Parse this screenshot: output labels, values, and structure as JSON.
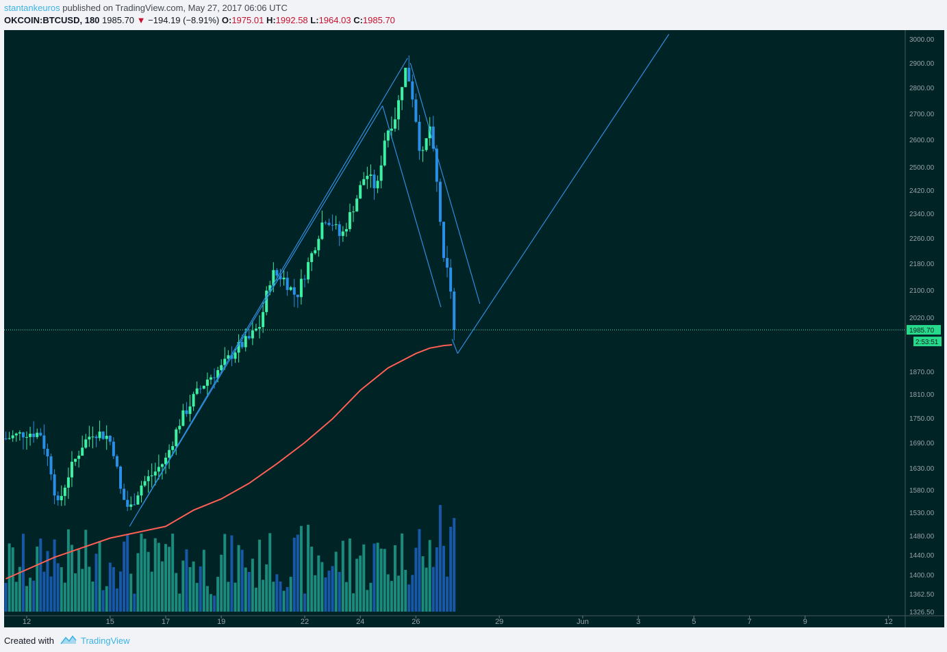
{
  "header": {
    "author": "stantankeuros",
    "published": "published on TradingView.com, May 27, 2017 06:06 UTC",
    "symbol": "OKCOIN:BTCUSD, 180",
    "last": "1985.70",
    "change": "−194.19 (−8.91%)",
    "o_label": "O:",
    "o_value": "1975.01",
    "h_label": "H:",
    "h_value": "1992.58",
    "l_label": "L:",
    "l_value": "1964.03",
    "c_label": "C:",
    "c_value": "1985.70"
  },
  "footer": {
    "created_with": "Created with",
    "brand": "TradingView"
  },
  "colors": {
    "background": "#002326",
    "up": "#3cf0a4",
    "down": "#2a8fe6",
    "moving_average": "#ff5f54",
    "drawing": "#2d8fe0",
    "price_line": "#4df0c0",
    "vol_up": "#1f9e8c",
    "vol_down": "#1c62c0"
  },
  "chart_data": {
    "type": "candlestick",
    "title": "",
    "xlabel": "",
    "ylabel": "",
    "ylim": [
      1326.5,
      3020
    ],
    "y_ticks": [
      3000,
      2900,
      2800,
      2700,
      2600,
      2500,
      2420,
      2340,
      2260,
      2180,
      2100,
      2020,
      1870,
      1810,
      1750,
      1690,
      1630,
      1580,
      1530,
      1480,
      1440,
      1400,
      1362.5,
      1326.5
    ],
    "y_tick_labels": [
      "3000.00",
      "2900.00",
      "2800.00",
      "2700.00",
      "2600.00",
      "2500.00",
      "2420.00",
      "2340.00",
      "2260.00",
      "2180.00",
      "2100.00",
      "2020.00",
      "1870.00",
      "1810.00",
      "1750.00",
      "1690.00",
      "1630.00",
      "1580.00",
      "1530.00",
      "1480.00",
      "1440.00",
      "1400.00",
      "1362.50",
      "1326.50"
    ],
    "x_ticks": [
      {
        "label": "12",
        "day": 0
      },
      {
        "label": "15",
        "day": 3
      },
      {
        "label": "17",
        "day": 5
      },
      {
        "label": "19",
        "day": 7
      },
      {
        "label": "22",
        "day": 10
      },
      {
        "label": "24",
        "day": 12
      },
      {
        "label": "26",
        "day": 14
      },
      {
        "label": "29",
        "day": 17
      },
      {
        "label": "Jun",
        "day": 20
      },
      {
        "label": "3",
        "day": 22
      },
      {
        "label": "5",
        "day": 24
      },
      {
        "label": "7",
        "day": 26
      },
      {
        "label": "9",
        "day": 28
      },
      {
        "label": "12",
        "day": 31
      }
    ],
    "x_axis_note": "day = days after May 12, 2017 (x-axis tick label 12)",
    "price_series": [
      {
        "day": -0.75,
        "close": 1700
      },
      {
        "day": 0,
        "close": 1715
      },
      {
        "day": 0.5,
        "close": 1712
      },
      {
        "day": 0.9,
        "close": 1620
      },
      {
        "day": 1.1,
        "close": 1540
      },
      {
        "day": 1.5,
        "close": 1615
      },
      {
        "day": 2,
        "close": 1685
      },
      {
        "day": 2.4,
        "close": 1718
      },
      {
        "day": 2.9,
        "close": 1705
      },
      {
        "day": 3.1,
        "close": 1680
      },
      {
        "day": 3.4,
        "close": 1570
      },
      {
        "day": 3.7,
        "close": 1535
      },
      {
        "day": 4.1,
        "close": 1590
      },
      {
        "day": 4.6,
        "close": 1620
      },
      {
        "day": 5,
        "close": 1650
      },
      {
        "day": 5.5,
        "close": 1740
      },
      {
        "day": 6,
        "close": 1800
      },
      {
        "day": 6.5,
        "close": 1850
      },
      {
        "day": 7,
        "close": 1880
      },
      {
        "day": 7.5,
        "close": 1930
      },
      {
        "day": 8,
        "close": 1960
      },
      {
        "day": 8.4,
        "close": 2000
      },
      {
        "day": 8.8,
        "close": 2150
      },
      {
        "day": 9.2,
        "close": 2140
      },
      {
        "day": 9.7,
        "close": 2080
      },
      {
        "day": 10.3,
        "close": 2220
      },
      {
        "day": 10.7,
        "close": 2330
      },
      {
        "day": 11,
        "close": 2310
      },
      {
        "day": 11.3,
        "close": 2260
      },
      {
        "day": 11.7,
        "close": 2350
      },
      {
        "day": 12.2,
        "close": 2480
      },
      {
        "day": 12.6,
        "close": 2420
      },
      {
        "day": 12.9,
        "close": 2620
      },
      {
        "day": 13.3,
        "close": 2700
      },
      {
        "day": 13.6,
        "close": 2880
      },
      {
        "day": 13.8,
        "close": 2820
      },
      {
        "day": 14.0,
        "close": 2680
      },
      {
        "day": 14.2,
        "close": 2520
      },
      {
        "day": 14.5,
        "close": 2650
      },
      {
        "day": 14.8,
        "close": 2400
      },
      {
        "day": 15.0,
        "close": 2180
      },
      {
        "day": 15.2,
        "close": 2140
      },
      {
        "day": 15.4,
        "close": 1985.7
      }
    ],
    "moving_average": [
      {
        "day": -0.75,
        "value": 1392
      },
      {
        "day": 1,
        "value": 1435
      },
      {
        "day": 3,
        "value": 1475
      },
      {
        "day": 5,
        "value": 1500
      },
      {
        "day": 6,
        "value": 1535
      },
      {
        "day": 7,
        "value": 1560
      },
      {
        "day": 8,
        "value": 1595
      },
      {
        "day": 9,
        "value": 1640
      },
      {
        "day": 10,
        "value": 1690
      },
      {
        "day": 11,
        "value": 1748
      },
      {
        "day": 12,
        "value": 1820
      },
      {
        "day": 13,
        "value": 1880
      },
      {
        "day": 14,
        "value": 1920
      },
      {
        "day": 14.5,
        "value": 1935
      },
      {
        "day": 15.0,
        "value": 1942
      },
      {
        "day": 15.3,
        "value": 1944
      }
    ],
    "trendlines": [
      {
        "from": {
          "day": 3.7,
          "price": 1500
        },
        "to": {
          "day": 13.7,
          "price": 2920
        }
      },
      {
        "from": {
          "day": 4.1,
          "price": 1540
        },
        "to": {
          "day": 12.8,
          "price": 2730
        }
      },
      {
        "from": {
          "day": 12.8,
          "price": 2730
        },
        "to": {
          "day": 14.9,
          "price": 2050
        }
      },
      {
        "from": {
          "day": 13.8,
          "price": 2900
        },
        "to": {
          "day": 16.3,
          "price": 2060
        }
      },
      {
        "from": {
          "day": 15.3,
          "price": 1960
        },
        "to": {
          "day": 15.5,
          "price": 1920
        }
      },
      {
        "from": {
          "day": 15.5,
          "price": 1920
        },
        "to": {
          "day": 23.1,
          "price": 3020
        }
      }
    ],
    "current_price": 1985.7,
    "current_price_label": "1985.70",
    "countdown": "2:53:51"
  }
}
